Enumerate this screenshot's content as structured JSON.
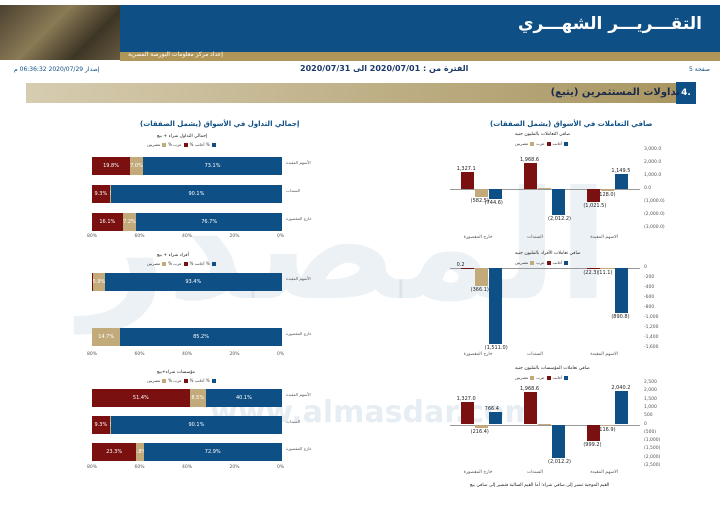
{
  "header": {
    "title": "التقـــريـــر الشهـــري",
    "subtitle": "إعداد مركز معلومات البورصة المصرية"
  },
  "meta": {
    "page": "صفحة 5",
    "period": "الفترة من : 2020/07/01 الى 2020/07/31",
    "issued": "إصدار 2020/07/29 06:36:32 م"
  },
  "section": {
    "number": "4.",
    "title": "تداولات المستثمرين (يتبع)"
  },
  "watermark": {
    "logo": "المصدر",
    "url": "www.almasdar.com"
  },
  "left_panel": {
    "title": "إجمالي التداول في الأسواق (يشمل الصفقات)",
    "ticks": [
      "80%",
      "60%",
      "40%",
      "20%",
      "0%"
    ],
    "charts": [
      {
        "title": "إجمالي التداول شراء + بيع",
        "legend": [
          "مصريين %",
          "عرب %",
          "أجانب %"
        ],
        "rows": [
          {
            "label": "الأسهم المقيدة",
            "values": [
              73.1,
              7.0,
              19.8
            ],
            "labels": [
              "73.1%",
              "7.0%",
              "19.8%"
            ]
          },
          {
            "label": "السندات",
            "values": [
              90.1,
              0.6,
              9.3
            ],
            "labels": [
              "90.1%",
              "0.6%",
              "9.3%"
            ]
          },
          {
            "label": "خارج المقصورة",
            "values": [
              76.7,
              7.2,
              16.1
            ],
            "labels": [
              "76.7%",
              "7.2%",
              "16.1%"
            ]
          }
        ]
      },
      {
        "title": "أفراد شراء + بيع",
        "legend": [
          "مصريين %",
          "عرب %",
          "أجانب %"
        ],
        "rows": [
          {
            "label": "الأسهم المقيدة",
            "values": [
              93.4,
              5.9,
              0.7
            ],
            "labels": [
              "93.4%",
              "5.9%",
              ""
            ]
          },
          {
            "label": "خارج المقصورة",
            "values": [
              85.2,
              14.7,
              0.1
            ],
            "labels": [
              "85.2%",
              "14.7%",
              ""
            ]
          }
        ]
      },
      {
        "title": "مؤسسات شراء+بيع",
        "legend": [
          "مصريين %",
          "عرب %",
          "أجانب %"
        ],
        "rows": [
          {
            "label": "الأسهم المقيدة",
            "values": [
              40.1,
              8.5,
              51.4
            ],
            "labels": [
              "40.1%",
              "8.5%",
              "51.4%"
            ]
          },
          {
            "label": "السندات",
            "values": [
              90.1,
              0.6,
              9.3
            ],
            "labels": [
              "90.1%",
              "0.6%",
              "9.3%"
            ]
          },
          {
            "label": "خارج المقصورة",
            "values": [
              72.9,
              3.8,
              23.3
            ],
            "labels": [
              "72.9%",
              "3.8%",
              "23.3%"
            ]
          }
        ]
      }
    ]
  },
  "right_panel": {
    "title": "صافي التعاملات في الأسواق (يشمل الصفقات)",
    "note": "القيم الموجبة تشير إلى صافي شراء؛ أما القيم السالبة فتشير إلى صافي بيع",
    "colors": {
      "egyptians": "#0e4f85",
      "arabs": "#c2aa7a",
      "foreigners": "#7a1010"
    },
    "charts": [
      {
        "title": "صافي التعاملات بالمليون جنيه",
        "legend": [
          "مصريين",
          "عرب",
          "أجانب"
        ],
        "categories": [
          "الاسهم المقيدة",
          "السندات",
          "خارج المقصورة"
        ],
        "ticks": [
          "3,000.0",
          "2,000.0",
          "1,000.0",
          "0.0",
          "(1,000.0)",
          "(2,000.0)",
          "(3,000.0)"
        ],
        "ylim": [
          -3000,
          3000
        ],
        "series": [
          {
            "name": "مصريين",
            "values": [
              1149.5,
              -2012.2,
              -744.6
            ]
          },
          {
            "name": "عرب",
            "values": [
              -128.0,
              43.6,
              -582.5
            ]
          },
          {
            "name": "أجانب",
            "values": [
              -1021.5,
              1968.6,
              1327.1
            ]
          }
        ],
        "labels": [
          [
            "1,149.5",
            "(2,012.2)",
            "(744.6)"
          ],
          [
            "(128.0)",
            "",
            "(582.5)"
          ],
          [
            "(1,021.5)",
            "1,968.6",
            "1,327.1"
          ]
        ]
      },
      {
        "title": "صافي تعاملات الأفراد بالمليون جنيه",
        "legend": [
          "مصريين",
          "عرب",
          "أجانب"
        ],
        "categories": [
          "الاسهم المقيدة",
          "السندات",
          "خارج المقصورة"
        ],
        "ticks": [
          "0",
          "-200",
          "-400",
          "-600",
          "-800",
          "-1,000",
          "-1,200",
          "-1,400",
          "-1,600"
        ],
        "ylim": [
          -1600,
          0
        ],
        "series": [
          {
            "name": "مصريين",
            "values": [
              -890.8,
              0,
              -1511.0
            ]
          },
          {
            "name": "عرب",
            "values": [
              -11.1,
              0,
              -366.1
            ]
          },
          {
            "name": "أجانب",
            "values": [
              -22.3,
              0,
              0.2
            ]
          }
        ],
        "labels": [
          [
            "(890.8)",
            "",
            "(1,511.0)"
          ],
          [
            "(11.1)",
            "",
            "(366.1)"
          ],
          [
            "(22.3)",
            "",
            "0.2"
          ]
        ]
      },
      {
        "title": "صافي تعاملات المؤسسات بالمليون جنيه",
        "legend": [
          "مصريين",
          "عرب",
          "أجانب"
        ],
        "categories": [
          "الاسهم المقيدة",
          "السندات",
          "خارج المقصورة"
        ],
        "ticks": [
          "2,500",
          "2,000",
          "1,500",
          "1,000",
          "500",
          "0",
          "(500)",
          "(1,000)",
          "(1,500)",
          "(2,000)",
          "(2,500)"
        ],
        "ylim": [
          -2500,
          2500
        ],
        "series": [
          {
            "name": "مصريين",
            "values": [
              2040.2,
              -2012.2,
              766.4
            ]
          },
          {
            "name": "عرب",
            "values": [
              -116.9,
              43.6,
              -216.4
            ]
          },
          {
            "name": "أجانب",
            "values": [
              -999.2,
              1968.6,
              1327.0
            ]
          }
        ],
        "labels": [
          [
            "2,040.2",
            "(2,012.2)",
            "766.4"
          ],
          [
            "(116.9)",
            "",
            "(216.4)"
          ],
          [
            "(999.2)",
            "1,968.6",
            "1,327.0"
          ]
        ]
      }
    ]
  },
  "chart_data": [
    {
      "type": "bar",
      "title": "إجمالي التداول شراء + بيع",
      "categories": [
        "الأسهم المقيدة",
        "السندات",
        "خارج المقصورة"
      ],
      "series": [
        {
          "name": "مصريين %",
          "values": [
            73.1,
            90.1,
            76.7
          ]
        },
        {
          "name": "عرب %",
          "values": [
            7.0,
            0.6,
            7.2
          ]
        },
        {
          "name": "أجانب %",
          "values": [
            19.8,
            9.3,
            16.1
          ]
        }
      ]
    },
    {
      "type": "bar",
      "title": "أفراد شراء + بيع",
      "categories": [
        "الأسهم المقيدة",
        "خارج المقصورة"
      ],
      "series": [
        {
          "name": "مصريين %",
          "values": [
            93.4,
            85.2
          ]
        },
        {
          "name": "عرب %",
          "values": [
            5.9,
            14.7
          ]
        }
      ]
    },
    {
      "type": "bar",
      "title": "مؤسسات شراء+بيع",
      "categories": [
        "الأسهم المقيدة",
        "السندات",
        "خارج المقصورة"
      ],
      "series": [
        {
          "name": "مصريين %",
          "values": [
            40.1,
            90.1,
            72.9
          ]
        },
        {
          "name": "عرب %",
          "values": [
            8.5,
            0.6,
            3.8
          ]
        },
        {
          "name": "أجانب %",
          "values": [
            51.4,
            9.3,
            23.3
          ]
        }
      ]
    },
    {
      "type": "bar",
      "title": "صافي التعاملات بالمليون جنيه",
      "categories": [
        "الاسهم المقيدة",
        "السندات",
        "خارج المقصورة"
      ],
      "series": [
        {
          "name": "مصريين",
          "values": [
            1149.5,
            -2012.2,
            -744.6
          ]
        },
        {
          "name": "عرب",
          "values": [
            -128.0,
            43.6,
            -582.5
          ]
        },
        {
          "name": "أجانب",
          "values": [
            -1021.5,
            1968.6,
            1327.1
          ]
        }
      ],
      "ylim": [
        -3000,
        3000
      ]
    },
    {
      "type": "bar",
      "title": "صافي تعاملات الأفراد بالمليون جنيه",
      "categories": [
        "الاسهم المقيدة",
        "السندات",
        "خارج المقصورة"
      ],
      "series": [
        {
          "name": "مصريين",
          "values": [
            -890.8,
            0,
            -1511.0
          ]
        },
        {
          "name": "عرب",
          "values": [
            -11.1,
            0,
            -366.1
          ]
        },
        {
          "name": "أجانب",
          "values": [
            -22.3,
            0,
            0.2
          ]
        }
      ],
      "ylim": [
        -1600,
        0
      ]
    },
    {
      "type": "bar",
      "title": "صافي تعاملات المؤسسات بالمليون جنيه",
      "categories": [
        "الاسهم المقيدة",
        "السندات",
        "خارج المقصورة"
      ],
      "series": [
        {
          "name": "مصريين",
          "values": [
            2040.2,
            -2012.2,
            766.4
          ]
        },
        {
          "name": "عرب",
          "values": [
            -116.9,
            43.6,
            -216.4
          ]
        },
        {
          "name": "أجانب",
          "values": [
            -999.2,
            1968.6,
            1327.0
          ]
        }
      ],
      "ylim": [
        -2500,
        2500
      ]
    }
  ]
}
